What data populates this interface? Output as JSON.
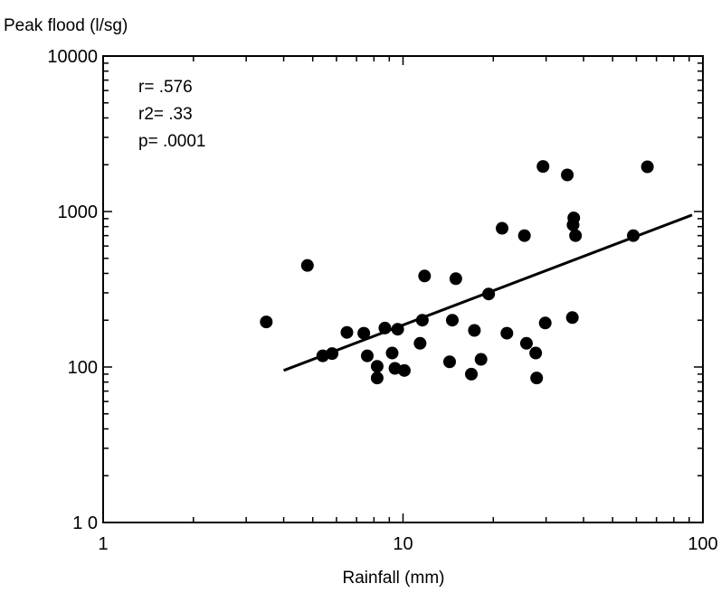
{
  "chart_data": {
    "type": "scatter",
    "title": "",
    "ylabel": "Peak flood (l/sg)",
    "xlabel": "Rainfall (mm)",
    "xscale": "log",
    "yscale": "log",
    "xlim": [
      1,
      100
    ],
    "ylim": [
      10,
      10000
    ],
    "x_ticks": [
      1,
      10,
      100
    ],
    "x_tick_labels": [
      "1",
      "10",
      "100"
    ],
    "y_ticks": [
      10,
      100,
      1000,
      10000
    ],
    "y_tick_labels": [
      "1 0",
      "100",
      "1000",
      "10000"
    ],
    "grid": false,
    "stats": [
      "r= .576",
      "r2= .33",
      "p= .0001"
    ],
    "points": [
      [
        3.5,
        195
      ],
      [
        4.8,
        450
      ],
      [
        5.4,
        118
      ],
      [
        5.8,
        122
      ],
      [
        6.5,
        167
      ],
      [
        7.4,
        165
      ],
      [
        7.6,
        118
      ],
      [
        8.2,
        101
      ],
      [
        8.2,
        85
      ],
      [
        8.7,
        178
      ],
      [
        9.2,
        123
      ],
      [
        9.4,
        98
      ],
      [
        9.6,
        175
      ],
      [
        10.1,
        95
      ],
      [
        11.4,
        142
      ],
      [
        11.6,
        200
      ],
      [
        11.8,
        385
      ],
      [
        14.3,
        108
      ],
      [
        14.6,
        200
      ],
      [
        15.0,
        370
      ],
      [
        16.9,
        90
      ],
      [
        17.3,
        172
      ],
      [
        18.2,
        112
      ],
      [
        19.3,
        295
      ],
      [
        21.4,
        780
      ],
      [
        22.2,
        165
      ],
      [
        25.4,
        700
      ],
      [
        25.8,
        142
      ],
      [
        27.7,
        123
      ],
      [
        27.9,
        85
      ],
      [
        29.3,
        1950
      ],
      [
        29.8,
        192
      ],
      [
        35.3,
        1720
      ],
      [
        36.7,
        208
      ],
      [
        36.9,
        820
      ],
      [
        37.1,
        910
      ],
      [
        37.6,
        700
      ],
      [
        58.6,
        700
      ],
      [
        65.3,
        1940
      ]
    ],
    "fit_line": {
      "x": [
        4,
        92
      ],
      "y": [
        95,
        950
      ]
    }
  }
}
